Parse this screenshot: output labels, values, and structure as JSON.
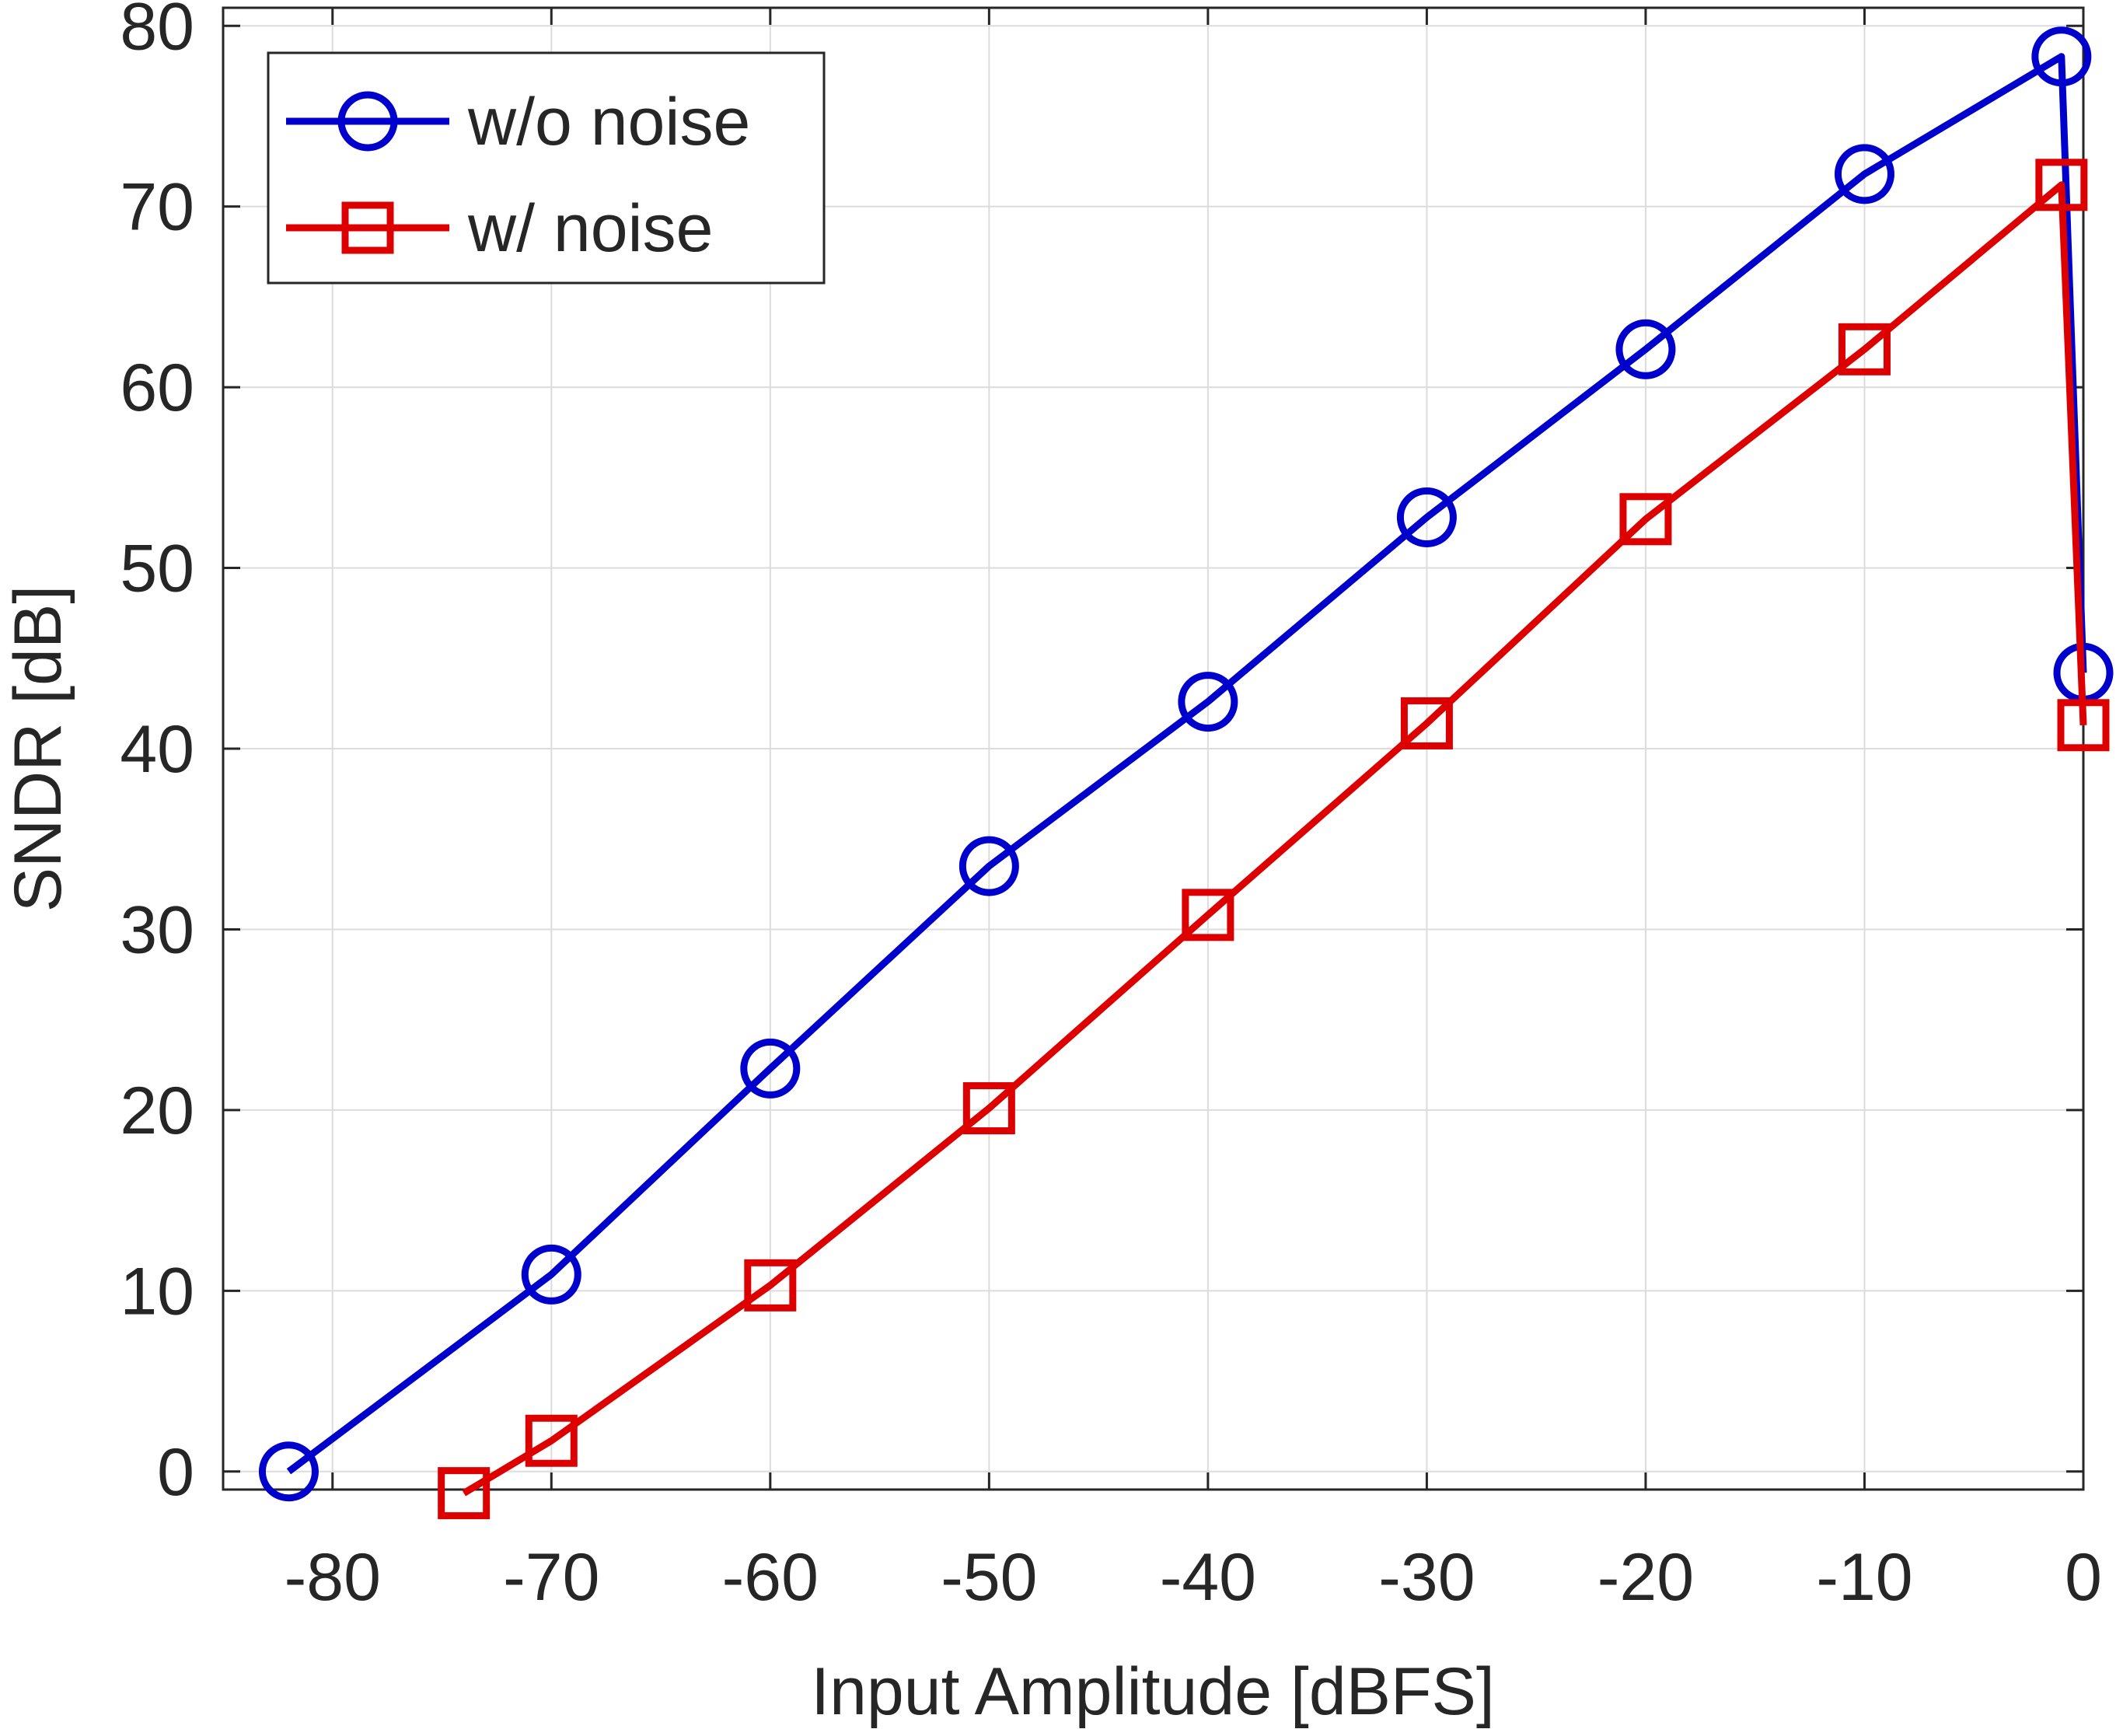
{
  "chart_data": {
    "type": "line",
    "title": "",
    "xlabel": "Input Amplitude [dBFS]",
    "ylabel": "SNDR [dB]",
    "xlim": [
      -85,
      0
    ],
    "ylim": [
      -1,
      81
    ],
    "xticks": [
      -80,
      -70,
      -60,
      -50,
      -40,
      -30,
      -20,
      -10,
      0
    ],
    "yticks": [
      0,
      10,
      20,
      30,
      40,
      50,
      60,
      70,
      80
    ],
    "grid": true,
    "legend_position": "top-left",
    "series": [
      {
        "name": "w/o noise",
        "color": "#0000CC",
        "marker": "circle",
        "x": [
          -82,
          -70,
          -60,
          -50,
          -40,
          -30,
          -20,
          -10,
          -1,
          0
        ],
        "y": [
          0,
          10.9,
          22.3,
          33.5,
          42.6,
          52.8,
          62.1,
          71.8,
          78.3,
          44.2
        ]
      },
      {
        "name": "w/ noise",
        "color": "#DD0000",
        "marker": "square",
        "x": [
          -74,
          -70,
          -60,
          -50,
          -40,
          -30,
          -20,
          -10,
          -1,
          0
        ],
        "y": [
          -1.2,
          1.7,
          10.3,
          20.1,
          30.8,
          41.4,
          52.7,
          62.1,
          71.2,
          41.3
        ]
      }
    ]
  }
}
